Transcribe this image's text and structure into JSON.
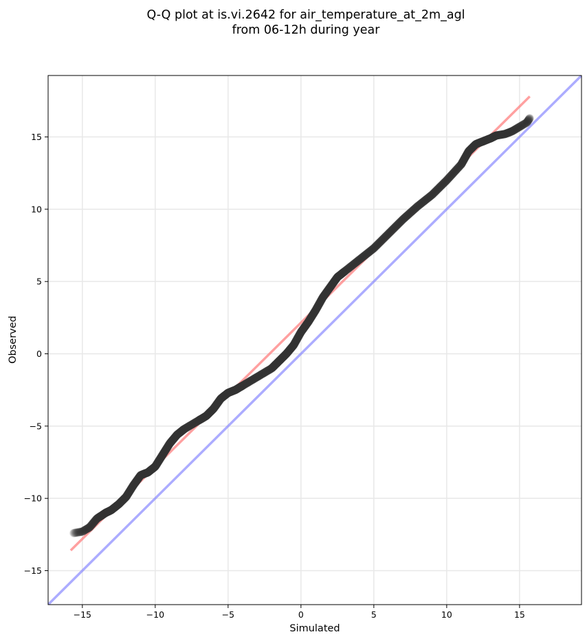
{
  "chart_data": {
    "type": "scatter",
    "title_lines": [
      "Q-Q plot at is.vi.2642 for air_temperature_at_2m_agl",
      "from 06-12h during year"
    ],
    "xlabel": "Simulated",
    "ylabel": "Observed",
    "xlim": [
      -17.35,
      19.25
    ],
    "ylim": [
      -17.35,
      19.25
    ],
    "xticks": [
      -15,
      -10,
      -5,
      0,
      5,
      10,
      15
    ],
    "yticks": [
      -15,
      -10,
      -5,
      0,
      5,
      10,
      15
    ],
    "xtick_labels": [
      "−15",
      "−10",
      "−5",
      "0",
      "5",
      "10",
      "15"
    ],
    "ytick_labels": [
      "−15",
      "−10",
      "−5",
      "0",
      "5",
      "10",
      "15"
    ],
    "grid": true,
    "quantile_curve": [
      [
        -15.6,
        -12.4
      ],
      [
        -15.0,
        -12.3
      ],
      [
        -14.5,
        -12.0
      ],
      [
        -14.0,
        -11.4
      ],
      [
        -13.4,
        -11.0
      ],
      [
        -13.0,
        -10.8
      ],
      [
        -12.5,
        -10.4
      ],
      [
        -12.0,
        -9.9
      ],
      [
        -11.5,
        -9.1
      ],
      [
        -11.0,
        -8.4
      ],
      [
        -10.5,
        -8.2
      ],
      [
        -10.0,
        -7.8
      ],
      [
        -9.5,
        -7.0
      ],
      [
        -9.0,
        -6.2
      ],
      [
        -8.5,
        -5.6
      ],
      [
        -8.0,
        -5.2
      ],
      [
        -7.0,
        -4.6
      ],
      [
        -6.5,
        -4.3
      ],
      [
        -6.0,
        -3.8
      ],
      [
        -5.5,
        -3.1
      ],
      [
        -5.0,
        -2.7
      ],
      [
        -4.5,
        -2.5
      ],
      [
        -4.0,
        -2.2
      ],
      [
        -3.0,
        -1.6
      ],
      [
        -2.0,
        -1.0
      ],
      [
        -1.5,
        -0.5
      ],
      [
        -1.0,
        0.0
      ],
      [
        -0.5,
        0.6
      ],
      [
        0.0,
        1.5
      ],
      [
        0.5,
        2.2
      ],
      [
        1.0,
        3.0
      ],
      [
        1.5,
        3.9
      ],
      [
        2.0,
        4.6
      ],
      [
        2.5,
        5.3
      ],
      [
        3.0,
        5.7
      ],
      [
        4.0,
        6.5
      ],
      [
        5.0,
        7.3
      ],
      [
        6.0,
        8.3
      ],
      [
        7.0,
        9.3
      ],
      [
        8.0,
        10.2
      ],
      [
        9.0,
        11.0
      ],
      [
        10.0,
        12.0
      ],
      [
        11.0,
        13.1
      ],
      [
        11.5,
        14.0
      ],
      [
        12.0,
        14.5
      ],
      [
        12.5,
        14.7
      ],
      [
        13.0,
        14.9
      ],
      [
        13.4,
        15.1
      ],
      [
        14.0,
        15.2
      ],
      [
        14.5,
        15.4
      ],
      [
        15.0,
        15.7
      ],
      [
        15.5,
        16.0
      ],
      [
        15.7,
        16.3
      ]
    ],
    "fit_line": {
      "from": [
        -15.8,
        -13.6
      ],
      "to": [
        15.7,
        17.8
      ],
      "color": "#ff8080"
    },
    "identity_line": {
      "color": "#8080ff"
    },
    "marker_color": "#333333"
  }
}
